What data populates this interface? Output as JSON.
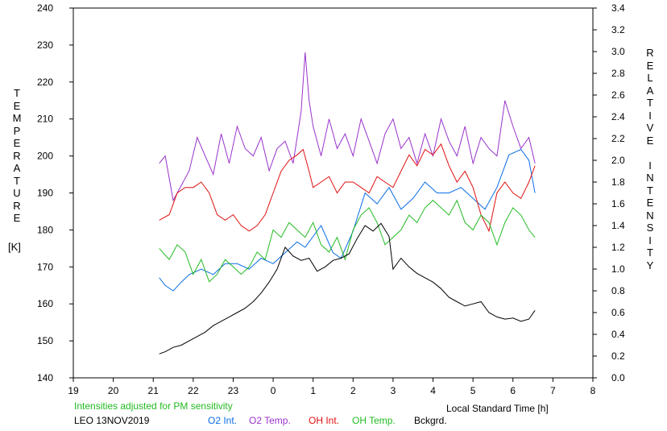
{
  "chart_data": {
    "type": "line",
    "left_axis_title": "TEMPERATURE",
    "left_axis_unit": "[K]",
    "right_axis_title_words": [
      "RELATIVE",
      "INTENSITY"
    ],
    "xlabel": "Local Standard Time [h]",
    "note": "Intensities adjusted for PM sensitivity",
    "station_date": "LEO 13NOV2019",
    "ylim_left": [
      140,
      240
    ],
    "ylim_right": [
      0.0,
      3.4
    ],
    "xlim": [
      19,
      32
    ],
    "x_tick_labels": [
      "19",
      "20",
      "21",
      "22",
      "23",
      "0",
      "1",
      "2",
      "3",
      "4",
      "5",
      "6",
      "7",
      "8"
    ],
    "y_left_tick_labels": [
      "140",
      "150",
      "160",
      "170",
      "180",
      "190",
      "200",
      "210",
      "220",
      "230",
      "240"
    ],
    "y_right_tick_labels": [
      "0.0",
      "0.2",
      "0.4",
      "0.6",
      "0.8",
      "1.0",
      "1.2",
      "1.4",
      "1.6",
      "1.8",
      "2.0",
      "2.2",
      "2.4",
      "2.6",
      "2.8",
      "3.0",
      "3.2",
      "3.4"
    ],
    "series": [
      {
        "name": "O2 Int.",
        "axis": "right",
        "color": "#0a6ee6",
        "x": [
          21.15,
          21.3,
          21.5,
          21.7,
          21.9,
          22.2,
          22.5,
          22.8,
          23.1,
          23.4,
          23.7,
          24.0,
          24.3,
          24.6,
          24.8,
          25.0,
          25.2,
          25.5,
          25.7,
          26.0,
          26.3,
          26.6,
          26.9,
          27.2,
          27.5,
          27.8,
          28.1,
          28.4,
          28.7,
          29.0,
          29.3,
          29.6,
          29.9,
          30.2,
          30.4,
          30.55
        ],
        "y": [
          0.92,
          0.85,
          0.8,
          0.88,
          0.95,
          1.0,
          0.95,
          1.05,
          1.05,
          1.0,
          1.1,
          1.05,
          1.15,
          1.25,
          1.2,
          1.3,
          1.4,
          1.15,
          1.1,
          1.35,
          1.7,
          1.6,
          1.75,
          1.55,
          1.65,
          1.8,
          1.7,
          1.7,
          1.75,
          1.65,
          1.55,
          1.75,
          2.05,
          2.1,
          2.0,
          1.7
        ]
      },
      {
        "name": "O2 Temp.",
        "axis": "left",
        "color": "#9933cc",
        "x": [
          21.15,
          21.3,
          21.5,
          21.7,
          21.9,
          22.1,
          22.3,
          22.5,
          22.7,
          22.9,
          23.1,
          23.3,
          23.5,
          23.7,
          23.9,
          24.1,
          24.3,
          24.5,
          24.7,
          24.8,
          24.9,
          25.0,
          25.2,
          25.4,
          25.6,
          25.8,
          26.0,
          26.2,
          26.4,
          26.6,
          26.8,
          27.0,
          27.2,
          27.4,
          27.6,
          27.8,
          28.0,
          28.2,
          28.4,
          28.6,
          28.8,
          29.0,
          29.2,
          29.4,
          29.6,
          29.8,
          30.0,
          30.2,
          30.4,
          30.55
        ],
        "y": [
          198,
          200,
          188,
          192,
          196,
          205,
          200,
          195,
          206,
          198,
          208,
          202,
          200,
          205,
          196,
          202,
          204,
          198,
          212,
          228,
          215,
          208,
          200,
          210,
          202,
          206,
          200,
          210,
          204,
          198,
          206,
          210,
          202,
          205,
          198,
          206,
          200,
          210,
          204,
          200,
          208,
          198,
          205,
          202,
          200,
          215,
          208,
          202,
          205,
          198
        ]
      },
      {
        "name": "OH Int.",
        "axis": "right",
        "color": "#e01010",
        "x": [
          21.15,
          21.4,
          21.6,
          21.8,
          22.0,
          22.2,
          22.4,
          22.6,
          22.8,
          23.0,
          23.2,
          23.4,
          23.6,
          23.8,
          24.0,
          24.2,
          24.4,
          24.6,
          24.75,
          24.9,
          25.0,
          25.2,
          25.4,
          25.6,
          25.8,
          26.0,
          26.2,
          26.4,
          26.6,
          26.8,
          27.0,
          27.2,
          27.4,
          27.6,
          27.8,
          28.0,
          28.2,
          28.4,
          28.6,
          28.8,
          29.0,
          29.2,
          29.4,
          29.6,
          29.8,
          30.0,
          30.2,
          30.4,
          30.55
        ],
        "y": [
          1.45,
          1.5,
          1.7,
          1.75,
          1.75,
          1.8,
          1.7,
          1.5,
          1.45,
          1.5,
          1.4,
          1.35,
          1.4,
          1.5,
          1.7,
          1.9,
          2.0,
          2.05,
          2.1,
          1.9,
          1.75,
          1.8,
          1.85,
          1.7,
          1.8,
          1.8,
          1.75,
          1.7,
          1.85,
          1.8,
          1.75,
          1.9,
          2.05,
          1.95,
          2.1,
          2.05,
          2.15,
          1.95,
          1.8,
          1.9,
          1.75,
          1.5,
          1.35,
          1.7,
          1.8,
          1.7,
          1.65,
          1.8,
          1.95
        ]
      },
      {
        "name": "OH Temp.",
        "axis": "left",
        "color": "#22bb22",
        "x": [
          21.15,
          21.4,
          21.6,
          21.8,
          22.0,
          22.2,
          22.4,
          22.6,
          22.8,
          23.0,
          23.2,
          23.4,
          23.6,
          23.8,
          24.0,
          24.2,
          24.4,
          24.6,
          24.8,
          25.0,
          25.2,
          25.4,
          25.6,
          25.8,
          26.0,
          26.2,
          26.4,
          26.6,
          26.8,
          27.0,
          27.2,
          27.4,
          27.6,
          27.8,
          28.0,
          28.2,
          28.4,
          28.6,
          28.8,
          29.0,
          29.2,
          29.4,
          29.6,
          29.8,
          30.0,
          30.2,
          30.4,
          30.55
        ],
        "y": [
          175,
          172,
          176,
          174,
          168,
          172,
          166,
          168,
          172,
          170,
          168,
          170,
          174,
          172,
          180,
          178,
          182,
          180,
          178,
          182,
          176,
          174,
          178,
          172,
          180,
          184,
          186,
          182,
          176,
          178,
          180,
          184,
          182,
          186,
          188,
          186,
          184,
          188,
          182,
          180,
          184,
          182,
          176,
          182,
          186,
          184,
          180,
          178
        ]
      },
      {
        "name": "Bckgrd.",
        "axis": "right",
        "color": "#000000",
        "x": [
          21.15,
          21.3,
          21.5,
          21.7,
          21.9,
          22.1,
          22.3,
          22.5,
          22.7,
          22.9,
          23.1,
          23.3,
          23.5,
          23.7,
          23.9,
          24.1,
          24.3,
          24.5,
          24.7,
          24.9,
          25.1,
          25.3,
          25.5,
          25.7,
          25.9,
          26.1,
          26.3,
          26.5,
          26.7,
          26.9,
          27.0,
          27.2,
          27.4,
          27.6,
          27.8,
          28.0,
          28.2,
          28.4,
          28.6,
          28.8,
          29.0,
          29.2,
          29.4,
          29.6,
          29.8,
          30.0,
          30.2,
          30.4,
          30.55
        ],
        "y": [
          0.22,
          0.24,
          0.28,
          0.3,
          0.34,
          0.38,
          0.42,
          0.48,
          0.52,
          0.56,
          0.6,
          0.64,
          0.7,
          0.78,
          0.88,
          1.0,
          1.2,
          1.12,
          1.08,
          1.1,
          0.98,
          1.02,
          1.08,
          1.1,
          1.14,
          1.28,
          1.4,
          1.35,
          1.42,
          1.3,
          1.0,
          1.1,
          1.02,
          0.96,
          0.92,
          0.88,
          0.82,
          0.74,
          0.7,
          0.66,
          0.68,
          0.7,
          0.6,
          0.56,
          0.54,
          0.55,
          0.52,
          0.54,
          0.62
        ]
      }
    ]
  }
}
